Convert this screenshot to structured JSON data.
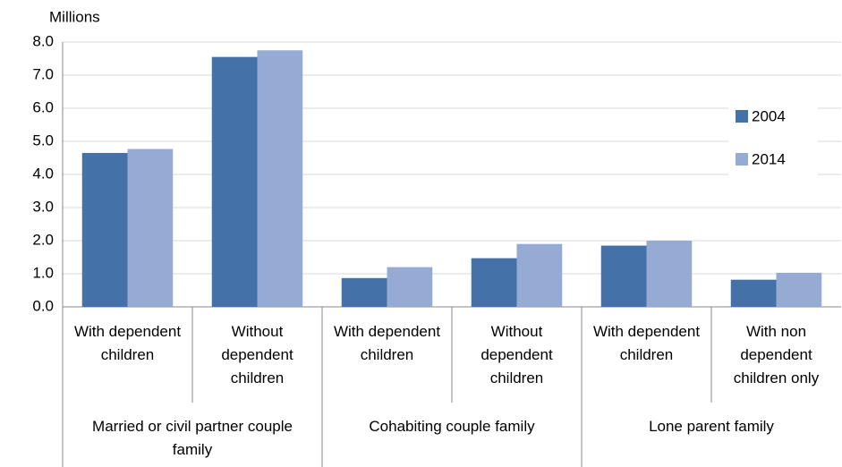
{
  "chart_data": {
    "type": "bar",
    "y_label": "Millions",
    "categories": [
      "With dependent children",
      "Without dependent children",
      "With dependent children",
      "Without dependent children",
      "With dependent children",
      "With non dependent children only"
    ],
    "groups": [
      "Married or civil partner couple family",
      "Cohabiting couple family",
      "Lone parent family"
    ],
    "series": [
      {
        "name": "2004",
        "color": "#4471a7",
        "values": [
          4.65,
          7.55,
          0.87,
          1.47,
          1.85,
          0.82
        ]
      },
      {
        "name": "2014",
        "color": "#95abd3",
        "values": [
          4.77,
          7.75,
          1.2,
          1.9,
          2.0,
          1.03
        ]
      }
    ],
    "ylim": [
      0,
      8
    ],
    "yticks": [
      {
        "value": 0,
        "label": "0.0"
      },
      {
        "value": 1,
        "label": "1.0"
      },
      {
        "value": 2,
        "label": "2.0"
      },
      {
        "value": 3,
        "label": "3.0"
      },
      {
        "value": 4,
        "label": "4.0"
      },
      {
        "value": 5,
        "label": "5.0"
      },
      {
        "value": 6,
        "label": "6.0"
      },
      {
        "value": 7,
        "label": "7.0"
      },
      {
        "value": 8,
        "label": "8.0"
      }
    ],
    "grid": true,
    "legend": "right"
  }
}
